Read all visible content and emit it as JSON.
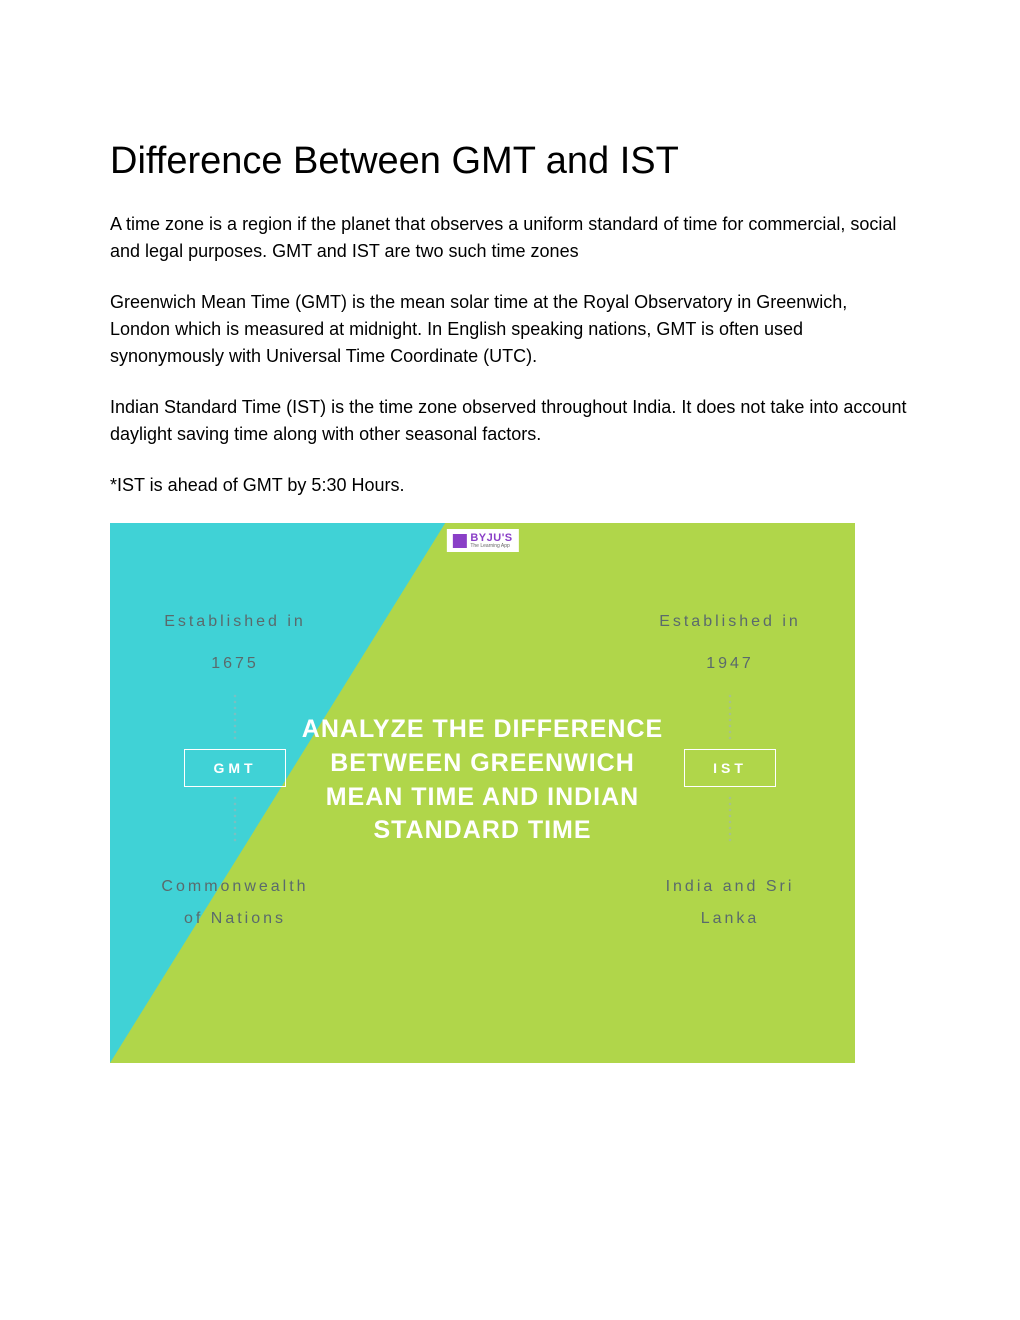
{
  "title": "Difference Between GMT and IST",
  "paragraphs": {
    "p1": "A time zone is a region if the planet that observes a uniform standard of time for commercial, social and legal purposes. GMT and IST are two such time zones",
    "p2": "Greenwich Mean Time (GMT) is the mean solar time at the Royal Observatory in Greenwich, London which is measured at midnight. In English speaking nations, GMT is often used synonymously with Universal Time Coordinate (UTC).",
    "p3": "Indian Standard Time (IST) is the time zone observed throughout India. It does not take into account daylight saving time along with other seasonal factors.",
    "p4": "*IST is ahead of GMT by 5:30 Hours."
  },
  "infographic": {
    "logo": {
      "brand": "BYJU'S",
      "subtitle": "The Learning App"
    },
    "headline": "ANALYZE THE DIFFERENCE BETWEEN GREENWICH MEAN TIME AND INDIAN STANDARD TIME",
    "left": {
      "established_label": "Established in",
      "year": "1675",
      "code": "GMT",
      "region_line1": "Commonwealth",
      "region_line2": "of Nations"
    },
    "right": {
      "established_label": "Established in",
      "year": "1947",
      "code": "IST",
      "region_line1": "India and Sri",
      "region_line2": "Lanka"
    },
    "colors": {
      "cyan": "#40d2d6",
      "lime": "#b0d64a",
      "muted_text": "#5a6a6c",
      "white": "#ffffff",
      "logo_purple": "#8a3fc7"
    }
  }
}
